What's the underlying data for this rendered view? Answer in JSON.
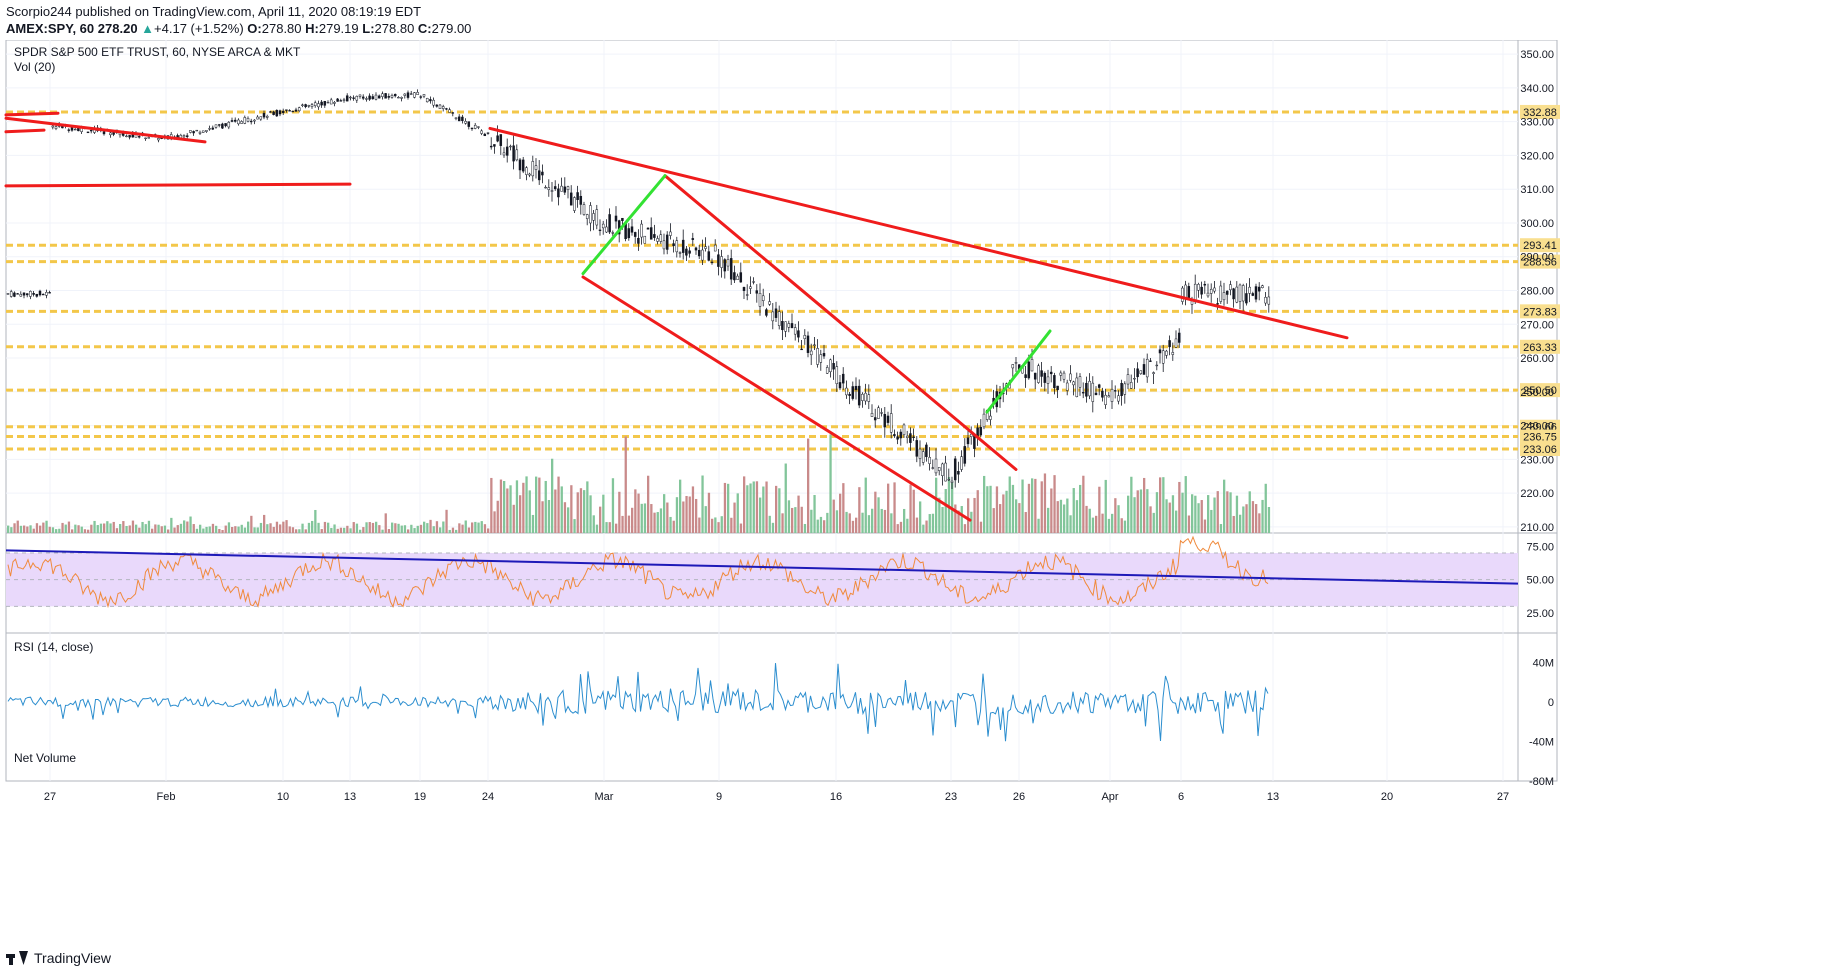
{
  "header": {
    "publisher_line": "Scorpio244 published on TradingView.com, April 11, 2020 08:19:19 EDT",
    "symbol": "AMEX:SPY, 60",
    "price": "278.20",
    "change_arrow": "▲",
    "change": "+4.17 (+1.52%)",
    "o_label": "O:",
    "o_value": "278.80",
    "h_label": "H:",
    "h_value": "279.19",
    "l_label": "L:",
    "l_value": "278.80",
    "c_label": "C:",
    "c_value": "279.00"
  },
  "main_pane": {
    "title": "SPDR S&P 500 ETF TRUST, 60, NYSE ARCA & MKT",
    "volume_label": "Vol (20)"
  },
  "rsi_pane": {
    "label": "RSI (14, close)"
  },
  "net_volume_pane": {
    "label": "Net Volume"
  },
  "footer": {
    "brand": "TradingView"
  },
  "colors": {
    "candle": "#131722",
    "volume_up": "#82c59a",
    "volume_down": "#c98a8a",
    "trendline": "#ef1c1c",
    "green_trendline": "#33e233",
    "level_line": "#f3c74a",
    "rsi_line": "#f08a3c",
    "rsi_band": "#e9d9fb",
    "rsi_trend": "#1d1ab8",
    "net_volume": "#2c8ecf"
  },
  "chart_data": [
    {
      "type": "candlestick",
      "title": "SPDR S&P 500 ETF TRUST, 60, NYSE ARCA & MKT",
      "ylim": [
        207,
        353
      ],
      "y_ticks": [
        "210.00",
        "220.00",
        "230.00",
        "240.00",
        "250.00",
        "260.00",
        "270.00",
        "280.00",
        "290.00",
        "300.00",
        "310.00",
        "320.00",
        "330.00",
        "340.00",
        "350.00"
      ],
      "x_tick_labels": [
        "27",
        "Feb",
        "10",
        "13",
        "19",
        "24",
        "Mar",
        "9",
        "16",
        "23",
        "26",
        "Apr",
        "6",
        "13",
        "20",
        "27"
      ],
      "price_path": [
        [
          "27",
          329
        ],
        [
          "Feb",
          325
        ],
        [
          "10",
          333
        ],
        [
          "13",
          337
        ],
        [
          "19",
          338
        ],
        [
          "24",
          326
        ],
        [
          "Mar",
          300
        ],
        [
          "9",
          290
        ],
        [
          "16",
          255
        ],
        [
          "23",
          225
        ],
        [
          "26",
          258
        ],
        [
          "Apr",
          248
        ],
        [
          "6",
          265
        ],
        [
          "13",
          279
        ]
      ],
      "horizontal_levels": [
        {
          "label": "332.88",
          "value": 332.88
        },
        {
          "label": "293.41",
          "value": 293.41
        },
        {
          "label": "288.56",
          "value": 288.56
        },
        {
          "label": "273.83",
          "value": 273.83
        },
        {
          "label": "263.33",
          "value": 263.33
        },
        {
          "label": "250.50",
          "value": 250.5
        },
        {
          "label": "239.66",
          "value": 239.66
        },
        {
          "label": "236.75",
          "value": 236.75
        },
        {
          "label": "233.06",
          "value": 233.06
        }
      ]
    },
    {
      "type": "line",
      "series": [
        {
          "name": "RSI (14, close)"
        }
      ],
      "y_ticks": [
        "25.00",
        "50.00",
        "75.00"
      ],
      "ylim": [
        10,
        85
      ],
      "band": [
        30,
        70
      ],
      "trendline": [
        [
          0,
          72
        ],
        [
          1,
          47
        ]
      ]
    },
    {
      "type": "line",
      "series": [
        {
          "name": "Net Volume"
        }
      ],
      "y_ticks": [
        "40M",
        "0",
        "-40M",
        "-80M"
      ],
      "ylim": [
        -80,
        70
      ]
    }
  ]
}
